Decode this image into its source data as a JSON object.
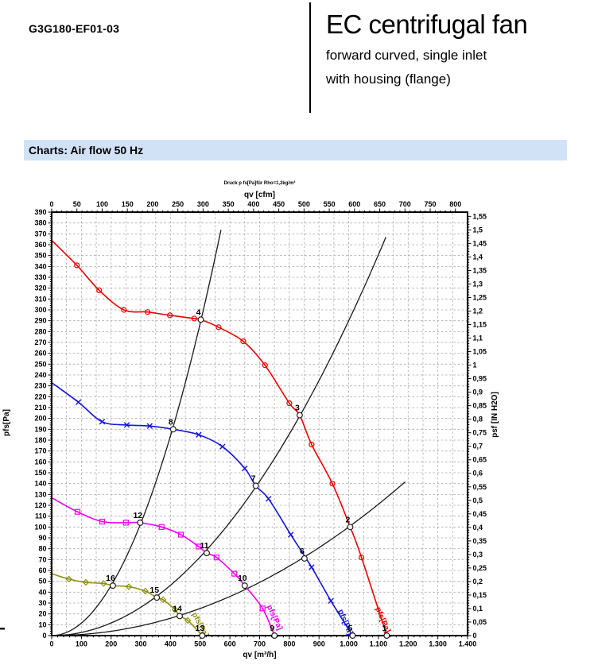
{
  "header": {
    "model": "G3G180-EF01-03",
    "product_title": "EC centrifugal fan",
    "subtitle1": "forward curved, single inlet",
    "subtitle2": "with housing (flange)"
  },
  "section": {
    "title": "Charts: Air flow 50 Hz",
    "bg_color": "#d2e2f6"
  },
  "chart_data": {
    "type": "line",
    "title": "Druck p fs[Pa]für Rho=1,2kg/m³",
    "grid": "on",
    "axes": {
      "top": {
        "label": "qv [cfm]",
        "min": 0,
        "max": 800,
        "tick_step": 50,
        "minor_step": 10,
        "cfm_to_m3h": 1.699,
        "ticks": [
          "0",
          "50",
          "100",
          "150",
          "200",
          "250",
          "300",
          "350",
          "400",
          "450",
          "500",
          "550",
          "600",
          "650",
          "700",
          "750",
          "800"
        ]
      },
      "bottom": {
        "label": "qv [m³/h]",
        "min": 0,
        "max": 1400,
        "tick_step": 100,
        "minor_step": 20,
        "ticks": [
          "0",
          "100",
          "200",
          "300",
          "400",
          "500",
          "600",
          "700",
          "800",
          "900",
          "1.000",
          "1.100",
          "1.200",
          "1.300",
          "1.400"
        ]
      },
      "left": {
        "label": "pfs[Pa]",
        "min": 0,
        "max": 390,
        "tick_step": 10,
        "minor_step": 2,
        "ticks": [
          "0",
          "10",
          "20",
          "30",
          "40",
          "50",
          "60",
          "70",
          "80",
          "90",
          "100",
          "110",
          "120",
          "130",
          "140",
          "150",
          "160",
          "170",
          "180",
          "190",
          "200",
          "210",
          "220",
          "230",
          "240",
          "250",
          "260",
          "270",
          "280",
          "290",
          "300",
          "310",
          "320",
          "330",
          "340",
          "350",
          "360",
          "370",
          "380",
          "390"
        ]
      },
      "right": {
        "label": "psf [IN H2O]",
        "min": 0,
        "max": 1.55,
        "tick_step": 0.05,
        "minor_step": 0.01,
        "inh2o_to_pa": 249.089,
        "ticks": [
          "0",
          "0,05",
          "0,1",
          "0,15",
          "0,2",
          "0,25",
          "0,3",
          "0,35",
          "0,4",
          "0,45",
          "0,5",
          "0,55",
          "0,6",
          "0,65",
          "0,7",
          "0,75",
          "0,8",
          "0,85",
          "0,9",
          "0,95",
          "1",
          "1,05",
          "1,1",
          "1,15",
          "1,2",
          "1,25",
          "1,3",
          "1,35",
          "1,4",
          "1,45",
          "1,5",
          "1,55"
        ]
      }
    },
    "series": [
      {
        "id": "speed-curve-1",
        "curve_label": "pfs[Pa]",
        "color": "#ee0000",
        "marker": "circle-dot",
        "points": [
          [
            0,
            364,
            0
          ],
          [
            85,
            341,
            1
          ],
          [
            160,
            318,
            1
          ],
          [
            243,
            300,
            1
          ],
          [
            323,
            298,
            1
          ],
          [
            398,
            295,
            1
          ],
          [
            480,
            292,
            1
          ],
          [
            502,
            291,
            0
          ],
          [
            562,
            284,
            1
          ],
          [
            645,
            271,
            1
          ],
          [
            718,
            249,
            1
          ],
          [
            800,
            214,
            1
          ],
          [
            835,
            203,
            0
          ],
          [
            875,
            176,
            1
          ],
          [
            945,
            140,
            1
          ],
          [
            1005,
            100,
            0
          ],
          [
            1043,
            72,
            1
          ],
          [
            1128,
            0,
            0
          ]
        ],
        "label_anchor": {
          "q": 1090,
          "p": 25,
          "angle": 67
        }
      },
      {
        "id": "speed-curve-2",
        "curve_label": "pfs[Pa]",
        "color": "#1414dc",
        "marker": "x",
        "points": [
          [
            0,
            233,
            0
          ],
          [
            90,
            215,
            1
          ],
          [
            170,
            197,
            1
          ],
          [
            253,
            194,
            1
          ],
          [
            330,
            193,
            1
          ],
          [
            409,
            190,
            0
          ],
          [
            495,
            185,
            1
          ],
          [
            575,
            174,
            1
          ],
          [
            650,
            154,
            1
          ],
          [
            687,
            138,
            0
          ],
          [
            730,
            126,
            1
          ],
          [
            805,
            93,
            1
          ],
          [
            875,
            63,
            1
          ],
          [
            940,
            32,
            1
          ],
          [
            1013,
            0,
            0
          ]
        ],
        "label_anchor": {
          "q": 964,
          "p": 23,
          "angle": 67
        }
      },
      {
        "id": "speed-curve-3",
        "curve_label": "pfs[Pa]",
        "color": "#f000f0",
        "marker": "square-dot",
        "points": [
          [
            0,
            127,
            0
          ],
          [
            87,
            114,
            1
          ],
          [
            170,
            105,
            1
          ],
          [
            250,
            104,
            1
          ],
          [
            298,
            104,
            0
          ],
          [
            370,
            100,
            1
          ],
          [
            435,
            93,
            1
          ],
          [
            495,
            82,
            1
          ],
          [
            522,
            76,
            0
          ],
          [
            555,
            72,
            1
          ],
          [
            615,
            57,
            1
          ],
          [
            650,
            46,
            0
          ],
          [
            710,
            25,
            1
          ],
          [
            750,
            0,
            0
          ]
        ],
        "label_anchor": {
          "q": 724,
          "p": 27,
          "angle": 65
        }
      },
      {
        "id": "speed-curve-4",
        "curve_label": "pfs[Pa]",
        "color": "#8f8f12",
        "marker": "diamond",
        "points": [
          [
            0,
            57,
            0
          ],
          [
            58,
            52,
            1
          ],
          [
            115,
            49,
            1
          ],
          [
            175,
            48,
            1
          ],
          [
            206,
            46,
            0
          ],
          [
            260,
            45,
            1
          ],
          [
            315,
            41,
            1
          ],
          [
            354,
            35,
            0
          ],
          [
            375,
            33,
            1
          ],
          [
            415,
            24,
            1
          ],
          [
            431,
            18,
            0
          ],
          [
            458,
            14,
            1
          ],
          [
            507,
            0,
            0
          ]
        ],
        "label_anchor": {
          "q": 472,
          "p": 20,
          "angle": 62
        }
      }
    ],
    "system_resistance_curves": [
      {
        "k": 0.00115,
        "qmax": 570
      },
      {
        "k": 0.00029,
        "qmax": 1125
      },
      {
        "k": 0.0001,
        "qmax": 1190
      }
    ],
    "operating_points": [
      {
        "n": "1",
        "q": 1128,
        "p": 0
      },
      {
        "n": "2",
        "q": 1005,
        "p": 100
      },
      {
        "n": "3",
        "q": 835,
        "p": 203
      },
      {
        "n": "4",
        "q": 502,
        "p": 291
      },
      {
        "n": "5",
        "q": 1013,
        "p": 0
      },
      {
        "n": "6",
        "q": 851,
        "p": 71
      },
      {
        "n": "7",
        "q": 687,
        "p": 138
      },
      {
        "n": "8",
        "q": 409,
        "p": 190
      },
      {
        "n": "9",
        "q": 750,
        "p": 0
      },
      {
        "n": "10",
        "q": 650,
        "p": 46
      },
      {
        "n": "11",
        "q": 522,
        "p": 76
      },
      {
        "n": "12",
        "q": 298,
        "p": 104
      },
      {
        "n": "13",
        "q": 507,
        "p": 0
      },
      {
        "n": "14",
        "q": 431,
        "p": 18
      },
      {
        "n": "15",
        "q": 354,
        "p": 35
      },
      {
        "n": "16",
        "q": 206,
        "p": 46
      }
    ],
    "colors": {
      "grid": "#a9a9a9",
      "axis": "#000000",
      "system_curve": "#1a1a1a"
    }
  }
}
